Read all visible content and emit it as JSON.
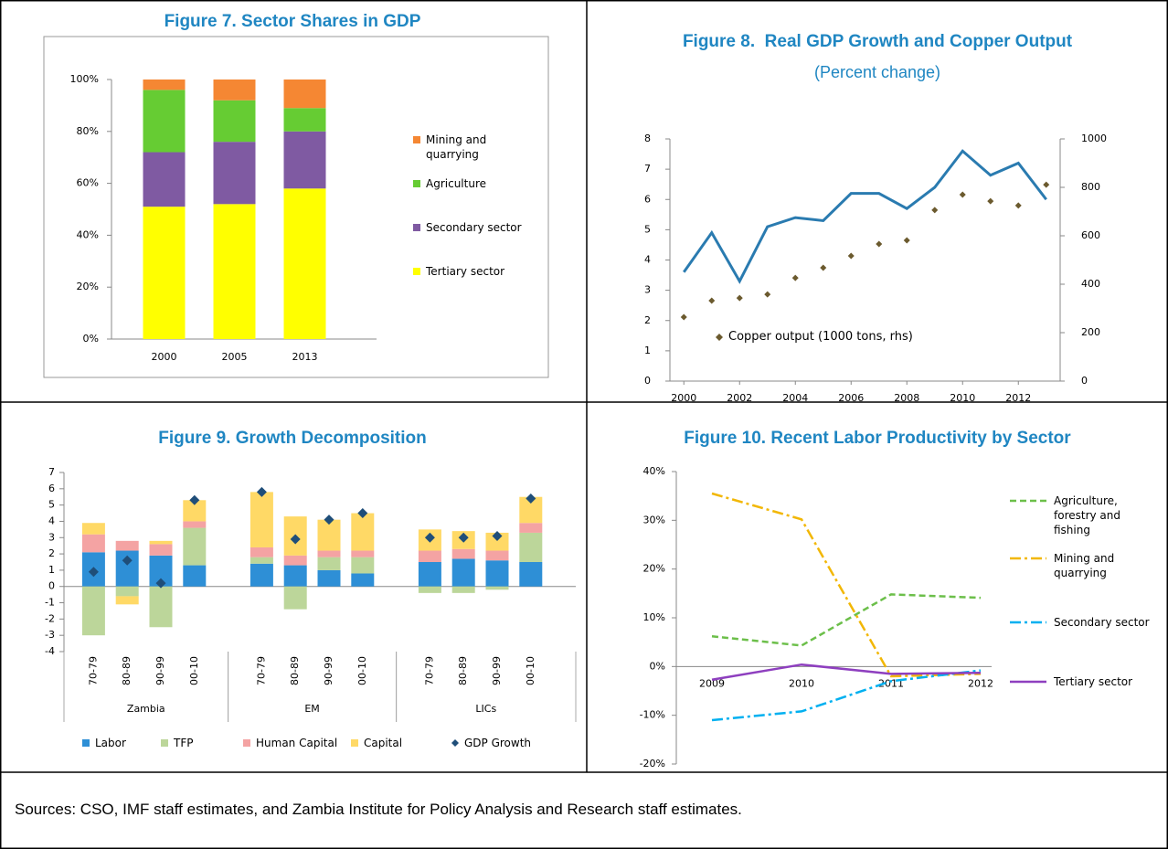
{
  "chart_data": [
    {
      "type": "bar",
      "title": "Figure 7. Sector Shares in GDP",
      "stacked": true,
      "categories": [
        "2000",
        "2005",
        "2013"
      ],
      "series": [
        {
          "name": "Tertiary sector",
          "color": "#ffff00",
          "values": [
            51,
            52,
            58
          ]
        },
        {
          "name": "Secondary sector",
          "color": "#7f5aa2",
          "values": [
            21,
            24,
            22
          ]
        },
        {
          "name": "Agriculture",
          "color": "#66cc33",
          "values": [
            24,
            16,
            9
          ]
        },
        {
          "name": "Mining and quarrying",
          "color": "#f58733",
          "values": [
            4,
            8,
            11
          ]
        }
      ],
      "ylim": [
        0,
        100
      ],
      "yticks": [
        {
          "value": 0,
          "label": "0%"
        },
        {
          "value": 20,
          "label": "20%"
        },
        {
          "value": 40,
          "label": "40%"
        },
        {
          "value": 60,
          "label": "60%"
        },
        {
          "value": 80,
          "label": "80%"
        },
        {
          "value": 100,
          "label": "100%"
        }
      ],
      "legend": "right"
    },
    {
      "type": "line",
      "title": "Figure 8.  Real GDP Growth and Copper Output",
      "subtitle": "(Percent change)",
      "x": [
        2000,
        2001,
        2002,
        2003,
        2004,
        2005,
        2006,
        2007,
        2008,
        2009,
        2010,
        2011,
        2012,
        2013
      ],
      "series": [
        {
          "color": "#2a7bb0",
          "values": [
            3.6,
            4.9,
            3.3,
            5.1,
            5.4,
            5.3,
            6.2,
            6.2,
            5.7,
            6.4,
            7.6,
            6.8,
            7.2,
            6.0
          ]
        },
        {
          "name": "Copper output (1000 tons, rhs)",
          "type": "scatter",
          "axis": "y2",
          "color": "#6b5a2e",
          "values": [
            264,
            332,
            343,
            358,
            426,
            468,
            517,
            566,
            581,
            706,
            770,
            743,
            725,
            811
          ]
        }
      ],
      "xlim": [
        1999.5,
        2013.5
      ],
      "xticks": [
        2000,
        2002,
        2004,
        2006,
        2008,
        2010,
        2012
      ],
      "ylim": [
        0,
        8
      ],
      "yticks": [
        0,
        1,
        2,
        3,
        4,
        5,
        6,
        7,
        8
      ],
      "y2lim": [
        0,
        1000
      ],
      "y2ticks": [
        0,
        200,
        400,
        600,
        800,
        1000
      ],
      "legend": "bottom-left"
    },
    {
      "type": "bar",
      "title": "Figure 9. Growth Decomposition",
      "stacked": true,
      "groups": [
        {
          "name": "Zambia",
          "categories": [
            "70-79",
            "80-89",
            "90-99",
            "00-10"
          ]
        },
        {
          "name": "EM",
          "categories": [
            "70-79",
            "80-89",
            "90-99",
            "00-10"
          ]
        },
        {
          "name": "LICs",
          "categories": [
            "70-79",
            "80-89",
            "90-99",
            "00-10"
          ]
        }
      ],
      "series": [
        {
          "name": "Labor",
          "color": "#2e8fd6",
          "values": [
            2.1,
            2.2,
            1.9,
            1.3,
            1.4,
            1.3,
            1.0,
            0.8,
            1.5,
            1.7,
            1.6,
            1.5
          ]
        },
        {
          "name": "TFP",
          "color": "#bcd69a",
          "values": [
            -3.0,
            -0.6,
            -2.5,
            2.3,
            0.4,
            -1.4,
            0.8,
            1.0,
            -0.4,
            -0.4,
            -0.2,
            1.8
          ]
        },
        {
          "name": "Human Capital",
          "color": "#f4a3a3",
          "values": [
            1.1,
            0.6,
            0.7,
            0.4,
            0.6,
            0.6,
            0.4,
            0.4,
            0.7,
            0.6,
            0.6,
            0.6
          ]
        },
        {
          "name": "Capital",
          "color": "#ffd966",
          "values": [
            0.7,
            -0.5,
            0.2,
            1.3,
            3.4,
            2.4,
            1.9,
            2.3,
            1.3,
            1.1,
            1.1,
            1.6
          ]
        },
        {
          "name": "GDP Growth",
          "type": "scatter",
          "marker": "diamond",
          "color": "#1f4e79",
          "values": [
            0.9,
            1.6,
            0.2,
            5.3,
            5.8,
            2.9,
            4.1,
            4.5,
            3.0,
            3.0,
            3.1,
            5.4
          ]
        }
      ],
      "ylim": [
        -4,
        7
      ],
      "yticks": [
        -4,
        -3,
        -2,
        -1,
        0,
        1,
        2,
        3,
        4,
        5,
        6,
        7
      ],
      "legend": "bottom"
    },
    {
      "type": "line",
      "title": "Figure 10. Recent Labor Productivity by Sector",
      "categories": [
        "2009",
        "2010",
        "2011",
        "2012"
      ],
      "series": [
        {
          "name": "Agriculture, forestry and fishing",
          "color": "#6cbf4a",
          "dash": "dashed",
          "values": [
            6.2,
            4.3,
            14.8,
            14.1
          ]
        },
        {
          "name": "Mining and quarrying",
          "color": "#f2b705",
          "dash": "dashdot",
          "values": [
            35.5,
            30.2,
            -2,
            -1.5
          ]
        },
        {
          "name": "Secondary sector",
          "color": "#00b0f0",
          "dash": "dashdot",
          "values": [
            -11,
            -9.2,
            -3,
            -0.8
          ]
        },
        {
          "name": "Tertiary sector",
          "color": "#8e3fbf",
          "dash": "solid",
          "values": [
            -2.7,
            0.4,
            -1.5,
            -1.3
          ]
        }
      ],
      "ylim": [
        -20,
        40
      ],
      "yticks": [
        {
          "value": -20,
          "label": "-20%"
        },
        {
          "value": -10,
          "label": "-10%"
        },
        {
          "value": 0,
          "label": "0%"
        },
        {
          "value": 10,
          "label": "10%"
        },
        {
          "value": 20,
          "label": "20%"
        },
        {
          "value": 30,
          "label": "30%"
        },
        {
          "value": 40,
          "label": "40%"
        }
      ],
      "legend": "right"
    }
  ],
  "footer": "Sources: CSO, IMF staff estimates, and Zambia Institute for Policy Analysis and Research staff estimates."
}
